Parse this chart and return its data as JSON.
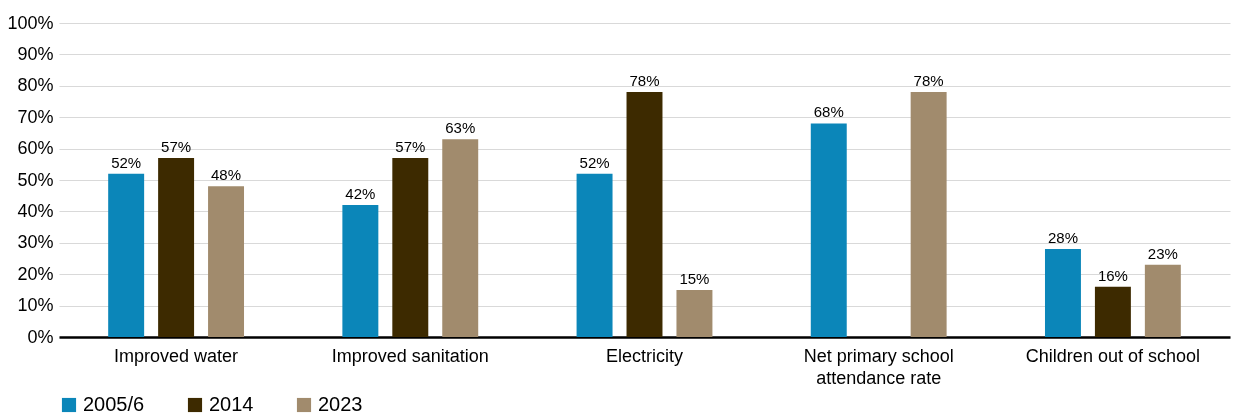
{
  "chart_data": {
    "type": "bar",
    "categories": [
      "Improved water",
      "Improved sanitation",
      "Electricity",
      "Net primary school attendance rate",
      "Children out of school"
    ],
    "series": [
      {
        "name": "2005/6",
        "color": "#0b86b9",
        "values": [
          52,
          42,
          52,
          68,
          28
        ],
        "value_labels": [
          "52%",
          "42%",
          "52%",
          "68%",
          "28%"
        ]
      },
      {
        "name": "2014",
        "color": "#3d2a00",
        "values": [
          57,
          57,
          78,
          null,
          16
        ],
        "value_labels": [
          "57%",
          "57%",
          "78%",
          null,
          "16%"
        ]
      },
      {
        "name": "2023",
        "color": "#a18b6d",
        "values": [
          48,
          63,
          15,
          78,
          23
        ],
        "value_labels": [
          "48%",
          "63%",
          "15%",
          "78%",
          "23%"
        ]
      }
    ],
    "ylim": [
      0,
      100
    ],
    "yticks": [
      {
        "value": 0,
        "label": "0%"
      },
      {
        "value": 10,
        "label": "10%"
      },
      {
        "value": 20,
        "label": "20%"
      },
      {
        "value": 30,
        "label": "30%"
      },
      {
        "value": 40,
        "label": "40%"
      },
      {
        "value": 50,
        "label": "50%"
      },
      {
        "value": 60,
        "label": "60%"
      },
      {
        "value": 70,
        "label": "70%"
      },
      {
        "value": 80,
        "label": "80%"
      },
      {
        "value": 90,
        "label": "90%"
      },
      {
        "value": 100,
        "label": "100%"
      }
    ],
    "grid": "y",
    "legend": "bottom"
  }
}
